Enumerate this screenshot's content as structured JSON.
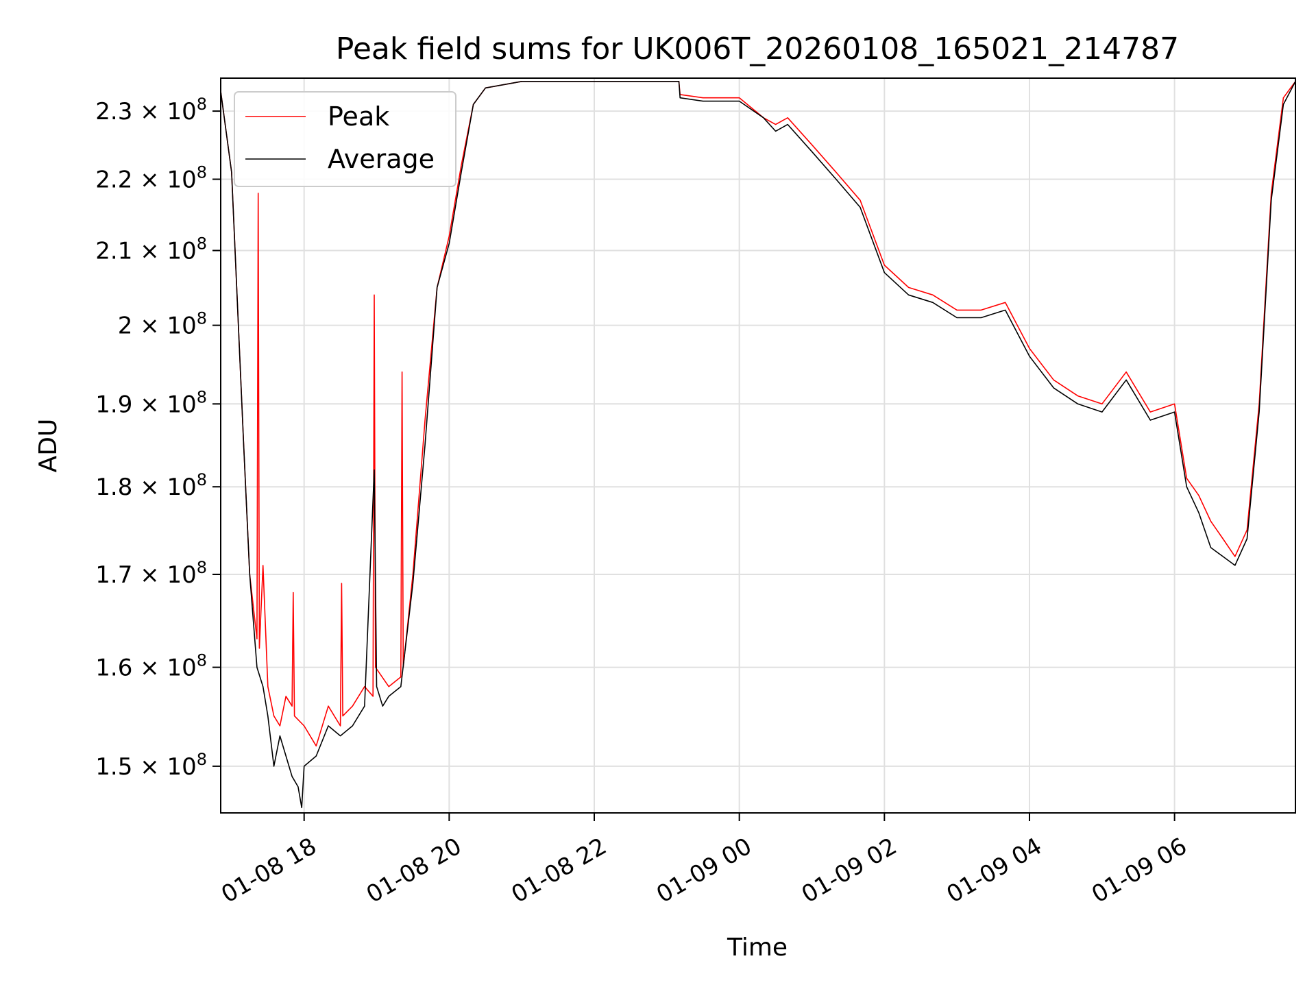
{
  "chart_data": {
    "type": "line",
    "title": "Peak field sums for UK006T_20260108_165021_214787",
    "xlabel": "Time",
    "ylabel": "ADU",
    "y_scale": "log",
    "xlim": [
      "2026-01-08 16:51",
      "2026-01-09 07:40"
    ],
    "ylim": [
      145500000,
      235000000
    ],
    "grid": true,
    "legend": {
      "placement": "upper-left",
      "entries": [
        "Peak",
        "Average"
      ]
    },
    "x_ticks": [
      "2026-01-08 18:00",
      "2026-01-08 20:00",
      "2026-01-08 22:00",
      "2026-01-09 00:00",
      "2026-01-09 02:00",
      "2026-01-09 04:00",
      "2026-01-09 06:00"
    ],
    "x_tick_labels": [
      "01-08 18",
      "01-08 20",
      "01-08 22",
      "01-09 00",
      "01-09 02",
      "01-09 04",
      "01-09 06"
    ],
    "y_ticks": [
      150000000,
      160000000,
      170000000,
      180000000,
      190000000,
      200000000,
      210000000,
      220000000,
      230000000
    ],
    "y_tick_labels": [
      {
        "mantissa": "1.5 × 10",
        "exp": "8"
      },
      {
        "mantissa": "1.6 × 10",
        "exp": "8"
      },
      {
        "mantissa": "1.7 × 10",
        "exp": "8"
      },
      {
        "mantissa": "1.8 × 10",
        "exp": "8"
      },
      {
        "mantissa": "1.9 × 10",
        "exp": "8"
      },
      {
        "mantissa": "2 × 10",
        "exp": "8"
      },
      {
        "mantissa": "2.1 × 10",
        "exp": "8"
      },
      {
        "mantissa": "2.2 × 10",
        "exp": "8"
      },
      {
        "mantissa": "2.3 × 10",
        "exp": "8"
      }
    ],
    "colors": {
      "Peak": "#ff0000",
      "Average": "#000000",
      "grid": "#e0e0e0"
    },
    "series": [
      {
        "name": "Peak",
        "x": [
          "2026-01-08 16:51",
          "2026-01-08 17:00",
          "2026-01-08 17:10",
          "2026-01-08 17:15",
          "2026-01-08 17:21",
          "2026-01-08 17:22",
          "2026-01-08 17:23",
          "2026-01-08 17:26",
          "2026-01-08 17:30",
          "2026-01-08 17:35",
          "2026-01-08 17:40",
          "2026-01-08 17:45",
          "2026-01-08 17:50",
          "2026-01-08 17:51",
          "2026-01-08 17:52",
          "2026-01-08 18:00",
          "2026-01-08 18:10",
          "2026-01-08 18:20",
          "2026-01-08 18:30",
          "2026-01-08 18:31",
          "2026-01-08 18:32",
          "2026-01-08 18:40",
          "2026-01-08 18:50",
          "2026-01-08 18:57",
          "2026-01-08 18:58",
          "2026-01-08 18:59",
          "2026-01-08 19:10",
          "2026-01-08 19:20",
          "2026-01-08 19:21",
          "2026-01-08 19:22",
          "2026-01-08 19:30",
          "2026-01-08 19:40",
          "2026-01-08 19:50",
          "2026-01-08 20:00",
          "2026-01-08 20:10",
          "2026-01-08 20:20",
          "2026-01-08 20:30",
          "2026-01-08 21:00",
          "2026-01-08 22:00",
          "2026-01-08 23:10",
          "2026-01-08 23:11",
          "2026-01-08 23:30",
          "2026-01-09 00:00",
          "2026-01-09 00:20",
          "2026-01-09 00:30",
          "2026-01-09 00:40",
          "2026-01-09 01:00",
          "2026-01-09 01:20",
          "2026-01-09 01:40",
          "2026-01-09 02:00",
          "2026-01-09 02:20",
          "2026-01-09 02:40",
          "2026-01-09 03:00",
          "2026-01-09 03:20",
          "2026-01-09 03:40",
          "2026-01-09 04:00",
          "2026-01-09 04:20",
          "2026-01-09 04:40",
          "2026-01-09 05:00",
          "2026-01-09 05:20",
          "2026-01-09 05:40",
          "2026-01-09 06:00",
          "2026-01-09 06:10",
          "2026-01-09 06:20",
          "2026-01-09 06:30",
          "2026-01-09 06:40",
          "2026-01-09 06:50",
          "2026-01-09 07:00",
          "2026-01-09 07:10",
          "2026-01-09 07:20",
          "2026-01-09 07:30",
          "2026-01-09 07:40"
        ],
        "y": [
          233000000,
          221000000,
          185000000,
          170000000,
          163000000,
          218000000,
          162000000,
          171000000,
          158000000,
          155000000,
          154000000,
          157000000,
          156000000,
          168000000,
          155000000,
          154000000,
          152000000,
          156000000,
          154000000,
          169000000,
          155000000,
          156000000,
          158000000,
          157000000,
          204000000,
          160000000,
          158000000,
          159000000,
          194000000,
          160000000,
          170000000,
          188000000,
          205000000,
          212000000,
          222000000,
          231000000,
          233500000,
          234500000,
          234500000,
          234500000,
          232500000,
          232000000,
          232000000,
          229000000,
          228000000,
          229000000,
          225000000,
          221000000,
          217000000,
          208000000,
          205000000,
          204000000,
          202000000,
          202000000,
          203000000,
          197000000,
          193000000,
          191000000,
          190000000,
          194000000,
          189000000,
          190000000,
          181000000,
          179000000,
          176000000,
          174000000,
          172000000,
          175000000,
          190000000,
          218000000,
          232000000,
          234500000
        ]
      },
      {
        "name": "Average",
        "x": [
          "2026-01-08 16:51",
          "2026-01-08 17:00",
          "2026-01-08 17:10",
          "2026-01-08 17:15",
          "2026-01-08 17:21",
          "2026-01-08 17:26",
          "2026-01-08 17:30",
          "2026-01-08 17:35",
          "2026-01-08 17:40",
          "2026-01-08 17:45",
          "2026-01-08 17:50",
          "2026-01-08 17:55",
          "2026-01-08 17:58",
          "2026-01-08 18:00",
          "2026-01-08 18:10",
          "2026-01-08 18:20",
          "2026-01-08 18:30",
          "2026-01-08 18:40",
          "2026-01-08 18:50",
          "2026-01-08 18:58",
          "2026-01-08 19:00",
          "2026-01-08 19:05",
          "2026-01-08 19:10",
          "2026-01-08 19:20",
          "2026-01-08 19:30",
          "2026-01-08 19:40",
          "2026-01-08 19:50",
          "2026-01-08 20:00",
          "2026-01-08 20:10",
          "2026-01-08 20:20",
          "2026-01-08 20:30",
          "2026-01-08 21:00",
          "2026-01-08 22:00",
          "2026-01-08 23:10",
          "2026-01-08 23:11",
          "2026-01-08 23:30",
          "2026-01-09 00:00",
          "2026-01-09 00:20",
          "2026-01-09 00:30",
          "2026-01-09 00:40",
          "2026-01-09 01:00",
          "2026-01-09 01:20",
          "2026-01-09 01:40",
          "2026-01-09 02:00",
          "2026-01-09 02:20",
          "2026-01-09 02:40",
          "2026-01-09 03:00",
          "2026-01-09 03:20",
          "2026-01-09 03:40",
          "2026-01-09 04:00",
          "2026-01-09 04:20",
          "2026-01-09 04:40",
          "2026-01-09 05:00",
          "2026-01-09 05:20",
          "2026-01-09 05:40",
          "2026-01-09 06:00",
          "2026-01-09 06:10",
          "2026-01-09 06:20",
          "2026-01-09 06:30",
          "2026-01-09 06:40",
          "2026-01-09 06:50",
          "2026-01-09 07:00",
          "2026-01-09 07:10",
          "2026-01-09 07:20",
          "2026-01-09 07:30",
          "2026-01-09 07:40"
        ],
        "y": [
          233000000,
          221000000,
          185000000,
          170000000,
          160000000,
          158000000,
          155000000,
          150000000,
          153000000,
          151000000,
          149000000,
          148000000,
          146000000,
          150000000,
          151000000,
          154000000,
          153000000,
          154000000,
          156000000,
          182000000,
          158000000,
          156000000,
          157000000,
          158000000,
          169000000,
          185000000,
          205000000,
          211000000,
          221000000,
          231000000,
          233500000,
          234500000,
          234500000,
          234500000,
          232000000,
          231500000,
          231500000,
          229000000,
          227000000,
          228000000,
          224000000,
          220000000,
          216000000,
          207000000,
          204000000,
          203000000,
          201000000,
          201000000,
          202000000,
          196000000,
          192000000,
          190000000,
          189000000,
          193000000,
          188000000,
          189000000,
          180000000,
          177000000,
          173000000,
          172000000,
          171000000,
          174000000,
          189000000,
          217000000,
          231000000,
          234500000
        ]
      }
    ]
  }
}
